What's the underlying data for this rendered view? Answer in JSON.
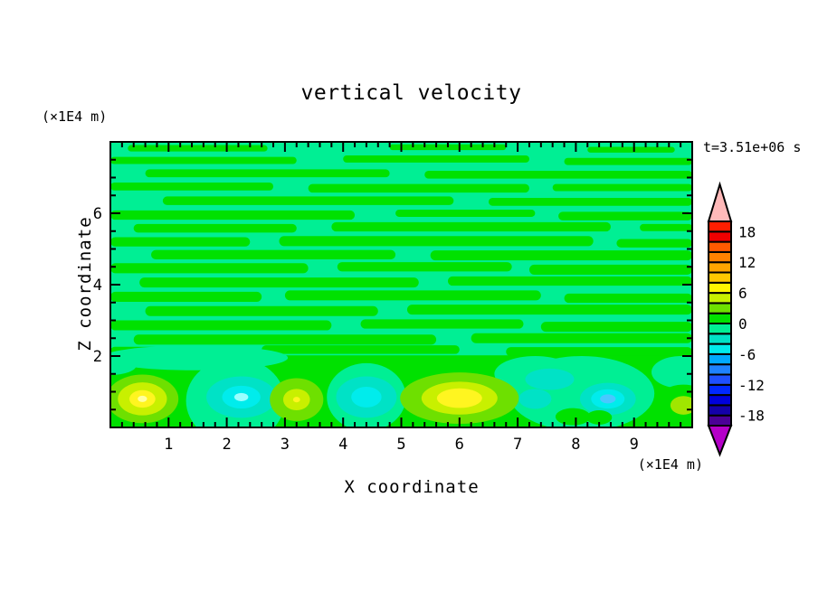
{
  "title": "vertical velocity",
  "time_label": "t=3.51e+06 s",
  "axis_unit_labels": {
    "y": "(×1E4 m)",
    "x": "(×1E4 m)"
  },
  "axes": {
    "x": {
      "label": "X coordinate",
      "min": 0,
      "max": 10,
      "major_ticks": [
        1,
        2,
        3,
        4,
        5,
        6,
        7,
        8,
        9
      ],
      "minor_step": 0.2
    },
    "y": {
      "label": "Z coordinate",
      "min": 0,
      "max": 8,
      "major_ticks": [
        2,
        4,
        6
      ],
      "minor_step": 0.5
    }
  },
  "colorbar": {
    "min": -20,
    "max": 20,
    "cell_step": 2,
    "tick_values": [
      18,
      12,
      6,
      0,
      -6,
      -12,
      -18
    ],
    "colors_bottom_to_top": [
      "#4B0096",
      "#1400AA",
      "#0000DC",
      "#0028FF",
      "#1E50FF",
      "#1E82FF",
      "#00AAFF",
      "#00ECEC",
      "#00E2C6",
      "#00EF94",
      "#00E100",
      "#6EE000",
      "#C8F000",
      "#FFF500",
      "#FFC800",
      "#FFA500",
      "#FF8200",
      "#FF5A00",
      "#F00000",
      "#FF1E00"
    ],
    "under_arrow_color": "#B400C8",
    "over_arrow_color": "#FFB9B9"
  },
  "chart_data": {
    "type": "heatmap",
    "title": "vertical velocity",
    "xlabel": "X coordinate (×1E4 m)",
    "ylabel": "Z coordinate (×1E4 m)",
    "annotation": "t=3.51e+06 s",
    "xlim": [
      0,
      10
    ],
    "ylim": [
      0,
      8
    ],
    "contour_levels": {
      "min": -20,
      "max": 20,
      "step": 2
    },
    "field_description": "Upper region (z≈2–8): weak alternating horizontal streaks of w≈0 to +2 (green) and w≈-2 to 0 (spring green). Lower boundary band (z<2): stronger convective cells alternating updrafts (yellow/chartreuse, up to ≈+8) and downdrafts (turquoise/cyan, down to ≈-7).",
    "features": [
      {
        "x": 0.55,
        "z": 0.8,
        "peak": 8,
        "sign": "updraft"
      },
      {
        "x": 2.25,
        "z": 0.85,
        "peak": -6,
        "sign": "downdraft"
      },
      {
        "x": 3.2,
        "z": 0.78,
        "peak": 7,
        "sign": "updraft"
      },
      {
        "x": 4.4,
        "z": 0.85,
        "peak": -5,
        "sign": "downdraft"
      },
      {
        "x": 6.0,
        "z": 0.82,
        "peak": 8,
        "sign": "updraft"
      },
      {
        "x": 7.55,
        "z": 1.35,
        "peak": -4,
        "sign": "downdraft"
      },
      {
        "x": 8.55,
        "z": 0.8,
        "peak": -7,
        "sign": "downdraft"
      },
      {
        "x": 9.85,
        "z": 0.62,
        "peak": 5,
        "sign": "updraft"
      }
    ],
    "render": {
      "background_color": "#00EF94",
      "streak_color": "#00E100",
      "bottom_band_top_z": 2.02,
      "streaks": [
        [
          0.3,
          7.82,
          2.4,
          0.18
        ],
        [
          4.8,
          7.85,
          2.0,
          0.16
        ],
        [
          8.2,
          7.78,
          1.5,
          0.16
        ],
        [
          0.0,
          7.48,
          3.2,
          0.2
        ],
        [
          4.0,
          7.52,
          3.2,
          0.2
        ],
        [
          7.8,
          7.45,
          2.2,
          0.2
        ],
        [
          0.6,
          7.12,
          4.2,
          0.22
        ],
        [
          5.4,
          7.08,
          4.6,
          0.22
        ],
        [
          0.0,
          6.75,
          2.8,
          0.22
        ],
        [
          3.4,
          6.7,
          3.8,
          0.24
        ],
        [
          7.6,
          6.72,
          2.4,
          0.2
        ],
        [
          0.9,
          6.35,
          5.0,
          0.24
        ],
        [
          6.5,
          6.32,
          3.5,
          0.22
        ],
        [
          0.0,
          5.95,
          4.2,
          0.26
        ],
        [
          4.9,
          6.0,
          2.4,
          0.2
        ],
        [
          7.7,
          5.92,
          2.3,
          0.24
        ],
        [
          0.4,
          5.58,
          2.8,
          0.24
        ],
        [
          3.8,
          5.62,
          4.8,
          0.26
        ],
        [
          9.1,
          5.6,
          0.9,
          0.2
        ],
        [
          0.0,
          5.2,
          2.4,
          0.26
        ],
        [
          2.9,
          5.22,
          5.4,
          0.28
        ],
        [
          8.7,
          5.16,
          1.3,
          0.24
        ],
        [
          0.7,
          4.84,
          4.2,
          0.26
        ],
        [
          5.5,
          4.82,
          4.5,
          0.28
        ],
        [
          0.0,
          4.46,
          3.4,
          0.28
        ],
        [
          3.9,
          4.5,
          3.0,
          0.26
        ],
        [
          7.2,
          4.42,
          2.8,
          0.28
        ],
        [
          0.5,
          4.06,
          4.8,
          0.28
        ],
        [
          5.8,
          4.1,
          4.2,
          0.26
        ],
        [
          0.0,
          3.66,
          2.6,
          0.28
        ],
        [
          3.0,
          3.7,
          4.4,
          0.28
        ],
        [
          7.8,
          3.62,
          2.2,
          0.26
        ],
        [
          0.6,
          3.26,
          4.0,
          0.28
        ],
        [
          5.1,
          3.3,
          4.9,
          0.28
        ],
        [
          0.0,
          2.86,
          3.8,
          0.28
        ],
        [
          4.3,
          2.9,
          2.8,
          0.26
        ],
        [
          7.4,
          2.82,
          2.6,
          0.28
        ],
        [
          0.4,
          2.46,
          5.2,
          0.28
        ],
        [
          6.2,
          2.5,
          3.8,
          0.28
        ],
        [
          0.0,
          2.14,
          2.0,
          0.24
        ],
        [
          2.6,
          2.18,
          3.4,
          0.24
        ],
        [
          6.8,
          2.12,
          3.2,
          0.26
        ]
      ],
      "spring_patches": [
        [
          2.15,
          0.75,
          0.85,
          1.2
        ],
        [
          4.4,
          0.85,
          0.68,
          0.95
        ],
        [
          8.1,
          0.95,
          1.25,
          1.05
        ],
        [
          7.3,
          1.5,
          0.7,
          0.5
        ],
        [
          9.8,
          1.55,
          0.5,
          0.45
        ],
        [
          0.0,
          1.75,
          0.45,
          0.28
        ],
        [
          1.45,
          1.95,
          1.6,
          0.35
        ]
      ],
      "blobs": [
        {
          "cx": 0.55,
          "cz": 0.8,
          "rx": 0.62,
          "rz": 0.68,
          "rings": [
            [
              "#6EE000",
              1
            ],
            [
              "#C8F000",
              0.68
            ],
            [
              "#FFF520",
              0.36
            ],
            [
              "#FFFFA0",
              0.13
            ]
          ]
        },
        {
          "cx": 2.25,
          "cz": 0.85,
          "rx": 0.6,
          "rz": 0.58,
          "rings": [
            [
              "#00E2C6",
              1
            ],
            [
              "#00ECEC",
              0.55
            ],
            [
              "#9AFFFF",
              0.2
            ]
          ]
        },
        {
          "cx": 3.2,
          "cz": 0.78,
          "rx": 0.46,
          "rz": 0.6,
          "rings": [
            [
              "#6EE000",
              1
            ],
            [
              "#C8F000",
              0.5
            ],
            [
              "#FFF520",
              0.13
            ]
          ]
        },
        {
          "cx": 4.4,
          "cz": 0.85,
          "rx": 0.52,
          "rz": 0.58,
          "rings": [
            [
              "#00E2C6",
              1
            ],
            [
              "#00ECEC",
              0.5
            ]
          ]
        },
        {
          "cx": 6.0,
          "cz": 0.82,
          "rx": 1.02,
          "rz": 0.72,
          "rings": [
            [
              "#6EE000",
              1
            ],
            [
              "#C8F000",
              0.64
            ],
            [
              "#FFF520",
              0.38
            ]
          ]
        },
        {
          "cx": 7.55,
          "cz": 1.35,
          "rx": 0.42,
          "rz": 0.3,
          "rings": [
            [
              "#00E2C6",
              1
            ]
          ]
        },
        {
          "cx": 7.3,
          "cz": 0.8,
          "rx": 0.28,
          "rz": 0.28,
          "rings": [
            [
              "#00E2C6",
              1
            ]
          ]
        },
        {
          "cx": 8.55,
          "cz": 0.8,
          "rx": 0.48,
          "rz": 0.45,
          "rings": [
            [
              "#00E2C6",
              1
            ],
            [
              "#00ECEC",
              0.6
            ],
            [
              "#49C8FF",
              0.28
            ]
          ]
        },
        {
          "cx": 7.95,
          "cz": 0.3,
          "rx": 0.3,
          "rz": 0.24,
          "rings": [
            [
              "#00E100",
              1
            ]
          ]
        },
        {
          "cx": 8.4,
          "cz": 0.28,
          "rx": 0.22,
          "rz": 0.2,
          "rings": [
            [
              "#00E100",
              1
            ]
          ]
        },
        {
          "cx": 9.85,
          "cz": 0.62,
          "rx": 0.5,
          "rz": 0.58,
          "rings": [
            [
              "#00E100",
              1
            ],
            [
              "#A0E600",
              0.45
            ]
          ]
        }
      ]
    }
  }
}
